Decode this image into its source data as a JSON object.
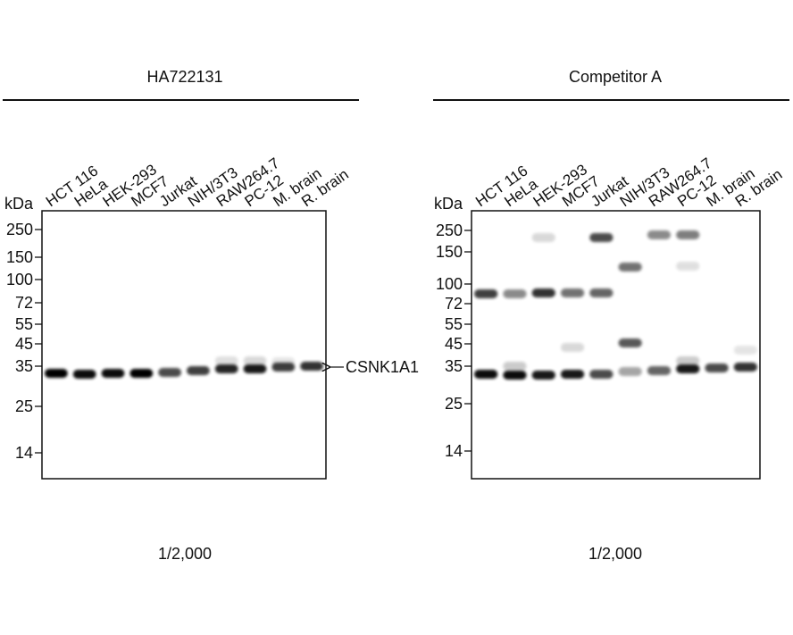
{
  "panels": [
    {
      "title": "HA722131",
      "lanes": [
        "HCT 116",
        "HeLa",
        "HEK-293",
        "MCF7",
        "Jurkat",
        "NIH/3T3",
        "RAW264.7",
        "PC-12",
        "M. brain",
        "R. brain"
      ],
      "unit": "kDa",
      "markers": [
        250,
        150,
        100,
        72,
        55,
        45,
        35,
        25,
        14
      ],
      "target": "CSNK1A1",
      "dilution": "1/2,000"
    },
    {
      "title": "Competitor A",
      "lanes": [
        "HCT 116",
        "HeLa",
        "HEK-293",
        "MCF7",
        "Jurkat",
        "NIH/3T3",
        "RAW264.7",
        "PC-12",
        "M. brain",
        "R. brain"
      ],
      "unit": "kDa",
      "markers": [
        250,
        150,
        100,
        72,
        55,
        45,
        35,
        25,
        14
      ],
      "dilution": "1/2,000"
    }
  ]
}
